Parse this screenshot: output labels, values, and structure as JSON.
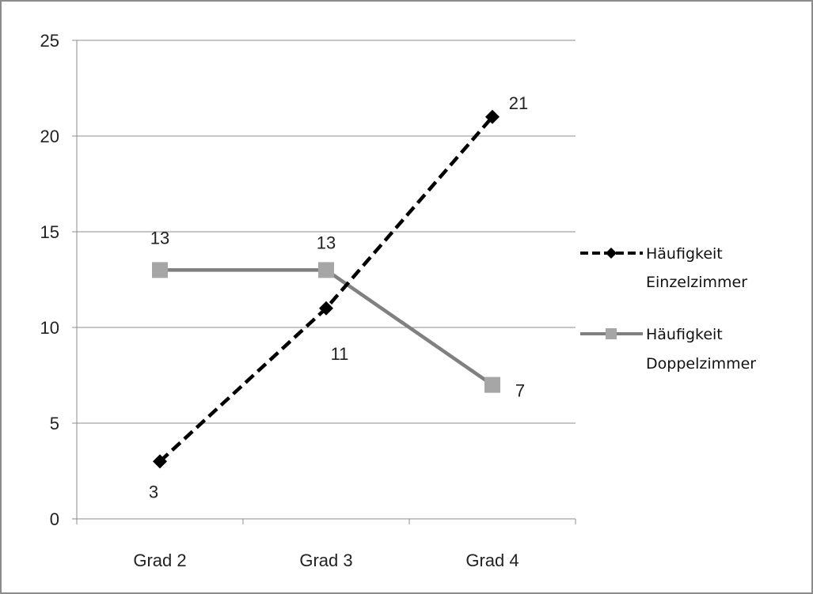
{
  "chart_data": {
    "type": "line",
    "title": "",
    "xlabel": "",
    "ylabel": "",
    "categories": [
      "Grad 2",
      "Grad 3",
      "Grad 4"
    ],
    "ylim": [
      0,
      25
    ],
    "yticks": [
      0,
      5,
      10,
      15,
      20,
      25
    ],
    "grid": true,
    "legend_position": "right",
    "series": [
      {
        "name_line1": "Häufigkeit",
        "name_line2": "Einzelzimmer",
        "values": [
          3,
          11,
          21
        ],
        "color": "#000000",
        "line_style": "dashed",
        "marker": "diamond",
        "data_labels": [
          "3",
          "11",
          "21"
        ]
      },
      {
        "name_line1": "Häufigkeit",
        "name_line2": "Doppelzimmer",
        "values": [
          13,
          13,
          7
        ],
        "color": "#808080",
        "marker_color": "#a6a6a6",
        "line_style": "solid",
        "marker": "square",
        "data_labels": [
          "13",
          "13",
          "7"
        ]
      }
    ]
  }
}
